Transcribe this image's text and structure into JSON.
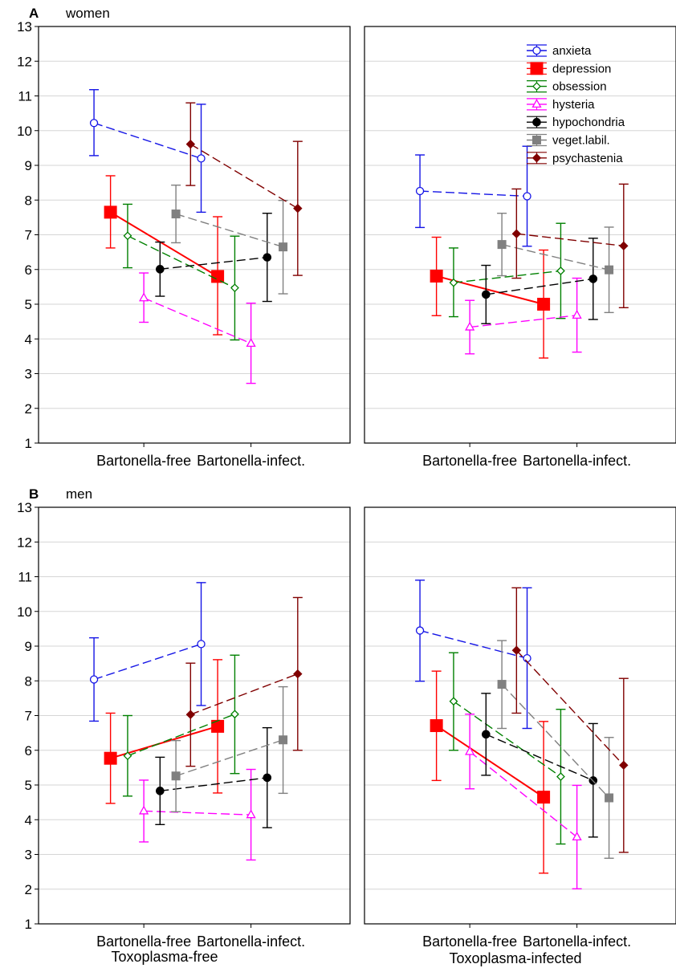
{
  "chart_data": {
    "type": "line",
    "ylim": [
      1,
      13
    ],
    "yticks": [
      1,
      2,
      3,
      4,
      5,
      6,
      7,
      8,
      9,
      10,
      11,
      12,
      13
    ],
    "grid": "horizontal",
    "categories": [
      "Bartonella-free",
      "Bartonella-infect."
    ],
    "column_labels": [
      "Toxoplasma-free",
      "Toxoplasma-infected"
    ],
    "legend_position": "top-right of panel A right subplot",
    "series_order": [
      "anxieta",
      "depression",
      "obsession",
      "hysteria",
      "hypochondria",
      "veget.labil.",
      "psychastenia"
    ],
    "series_styles": {
      "anxieta": {
        "color": "#1414e6",
        "marker": "circle-open",
        "dash": true
      },
      "depression": {
        "color": "#ff0000",
        "marker": "square",
        "dash": false
      },
      "obsession": {
        "color": "#008000",
        "marker": "diamond-open",
        "dash": true
      },
      "hysteria": {
        "color": "#ff00ff",
        "marker": "triangle-open",
        "dash": true
      },
      "hypochondria": {
        "color": "#000000",
        "marker": "circle",
        "dash": true
      },
      "veget.labil.": {
        "color": "#808080",
        "marker": "square",
        "dash": true
      },
      "psychastenia": {
        "color": "#800000",
        "marker": "diamond",
        "dash": true
      }
    },
    "panels": [
      {
        "letter": "A",
        "title": "women",
        "subplots": [
          {
            "series": [
              {
                "name": "anxieta",
                "values": [
                  10.22,
                  9.2
                ],
                "lower": [
                  9.28,
                  7.65
                ],
                "upper": [
                  11.18,
                  10.76
                ]
              },
              {
                "name": "depression",
                "values": [
                  7.65,
                  5.8
                ],
                "lower": [
                  6.62,
                  4.12
                ],
                "upper": [
                  8.7,
                  7.52
                ]
              },
              {
                "name": "obsession",
                "values": [
                  6.97,
                  5.47
                ],
                "lower": [
                  6.05,
                  3.97
                ],
                "upper": [
                  7.88,
                  6.96
                ]
              },
              {
                "name": "hysteria",
                "values": [
                  5.18,
                  3.87
                ],
                "lower": [
                  4.48,
                  2.72
                ],
                "upper": [
                  5.9,
                  5.03
                ]
              },
              {
                "name": "hypochondria",
                "values": [
                  6.01,
                  6.35
                ],
                "lower": [
                  5.23,
                  5.08
                ],
                "upper": [
                  6.79,
                  7.62
                ]
              },
              {
                "name": "veget.labil.",
                "values": [
                  7.6,
                  6.65
                ],
                "lower": [
                  6.77,
                  5.3
                ],
                "upper": [
                  8.43,
                  7.99
                ]
              },
              {
                "name": "psychastenia",
                "values": [
                  9.61,
                  7.76
                ],
                "lower": [
                  8.42,
                  5.83
                ],
                "upper": [
                  10.8,
                  9.69
                ]
              }
            ]
          },
          {
            "series": [
              {
                "name": "anxieta",
                "values": [
                  8.26,
                  8.11
                ],
                "lower": [
                  7.21,
                  6.67
                ],
                "upper": [
                  9.3,
                  9.55
                ]
              },
              {
                "name": "depression",
                "values": [
                  5.81,
                  5.0
                ],
                "lower": [
                  4.67,
                  3.45
                ],
                "upper": [
                  6.93,
                  6.56
                ]
              },
              {
                "name": "obsession",
                "values": [
                  5.62,
                  5.96
                ],
                "lower": [
                  4.64,
                  4.59
                ],
                "upper": [
                  6.62,
                  7.33
                ]
              },
              {
                "name": "hysteria",
                "values": [
                  4.34,
                  4.68
                ],
                "lower": [
                  3.57,
                  3.62
                ],
                "upper": [
                  5.11,
                  5.75
                ]
              },
              {
                "name": "hypochondria",
                "values": [
                  5.28,
                  5.73
                ],
                "lower": [
                  4.44,
                  4.56
                ],
                "upper": [
                  6.12,
                  6.9
                ]
              },
              {
                "name": "veget.labil.",
                "values": [
                  6.72,
                  5.99
                ],
                "lower": [
                  5.82,
                  4.76
                ],
                "upper": [
                  7.62,
                  7.22
                ]
              },
              {
                "name": "psychastenia",
                "values": [
                  7.03,
                  6.68
                ],
                "lower": [
                  5.75,
                  4.9
                ],
                "upper": [
                  8.32,
                  8.46
                ]
              }
            ]
          }
        ]
      },
      {
        "letter": "B",
        "title": "men",
        "subplots": [
          {
            "series": [
              {
                "name": "anxieta",
                "values": [
                  8.04,
                  9.06
                ],
                "lower": [
                  6.84,
                  7.29
                ],
                "upper": [
                  9.24,
                  10.83
                ]
              },
              {
                "name": "depression",
                "values": [
                  5.77,
                  6.69
                ],
                "lower": [
                  4.47,
                  4.77
                ],
                "upper": [
                  7.07,
                  8.61
                ]
              },
              {
                "name": "obsession",
                "values": [
                  5.84,
                  7.04
                ],
                "lower": [
                  4.68,
                  5.33
                ],
                "upper": [
                  7.0,
                  8.74
                ]
              },
              {
                "name": "hysteria",
                "values": [
                  4.25,
                  4.14
                ],
                "lower": [
                  3.36,
                  2.84
                ],
                "upper": [
                  5.14,
                  5.45
                ]
              },
              {
                "name": "hypochondria",
                "values": [
                  4.83,
                  5.21
                ],
                "lower": [
                  3.86,
                  3.77
                ],
                "upper": [
                  5.8,
                  6.65
                ]
              },
              {
                "name": "veget.labil.",
                "values": [
                  5.26,
                  6.3
                ],
                "lower": [
                  4.23,
                  4.76
                ],
                "upper": [
                  6.28,
                  7.83
                ]
              },
              {
                "name": "psychastenia",
                "values": [
                  7.03,
                  8.2
                ],
                "lower": [
                  5.54,
                  6.0
                ],
                "upper": [
                  8.51,
                  10.4
                ]
              }
            ]
          },
          {
            "series": [
              {
                "name": "anxieta",
                "values": [
                  9.45,
                  8.65
                ],
                "lower": [
                  7.99,
                  6.63
                ],
                "upper": [
                  10.9,
                  10.68
                ]
              },
              {
                "name": "depression",
                "values": [
                  6.71,
                  4.65
                ],
                "lower": [
                  5.13,
                  2.46
                ],
                "upper": [
                  8.28,
                  6.83
                ]
              },
              {
                "name": "obsession",
                "values": [
                  7.41,
                  5.24
                ],
                "lower": [
                  6.0,
                  3.3
                ],
                "upper": [
                  8.81,
                  7.18
                ]
              },
              {
                "name": "hysteria",
                "values": [
                  5.96,
                  3.5
                ],
                "lower": [
                  4.89,
                  2.01
                ],
                "upper": [
                  7.04,
                  4.99
                ]
              },
              {
                "name": "hypochondria",
                "values": [
                  6.46,
                  5.13
                ],
                "lower": [
                  5.28,
                  3.5
                ],
                "upper": [
                  7.64,
                  6.77
                ]
              },
              {
                "name": "veget.labil.",
                "values": [
                  7.9,
                  4.63
                ],
                "lower": [
                  6.63,
                  2.89
                ],
                "upper": [
                  9.16,
                  6.37
                ]
              },
              {
                "name": "psychastenia",
                "values": [
                  8.88,
                  5.57
                ],
                "lower": [
                  7.07,
                  3.06
                ],
                "upper": [
                  10.68,
                  8.07
                ]
              }
            ]
          }
        ]
      }
    ]
  }
}
